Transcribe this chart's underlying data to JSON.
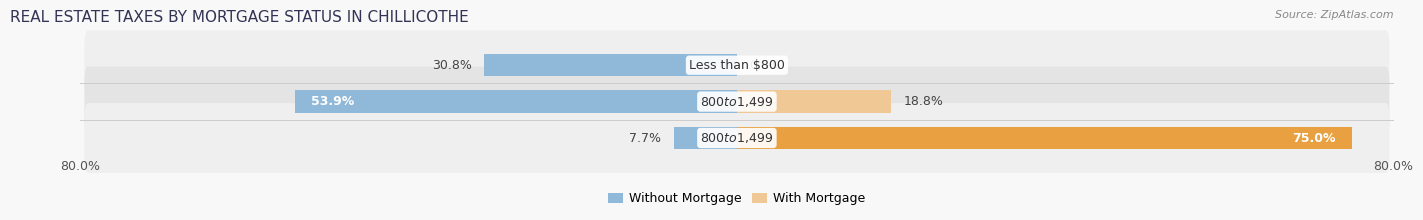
{
  "title": "REAL ESTATE TAXES BY MORTGAGE STATUS IN CHILLICOTHE",
  "source": "Source: ZipAtlas.com",
  "rows": [
    {
      "label": "Less than $800",
      "without_mortgage_pct": 30.8,
      "with_mortgage_pct": 0.0
    },
    {
      "label": "$800 to $1,499",
      "without_mortgage_pct": 53.9,
      "with_mortgage_pct": 18.8
    },
    {
      "label": "$800 to $1,499",
      "without_mortgage_pct": 7.7,
      "with_mortgage_pct": 75.0
    }
  ],
  "xlim_left": -80,
  "xlim_right": 80,
  "color_without": "#90b8d8",
  "color_with_light": "#f0c896",
  "color_with_dark": "#e8a040",
  "bar_height": 0.62,
  "bg_color_odd": "#efefef",
  "bg_color_even": "#e4e4e4",
  "bg_outer": "#f8f8f8",
  "label_fontsize": 9,
  "pct_fontsize": 9,
  "title_fontsize": 11,
  "source_fontsize": 8,
  "legend_label_without": "Without Mortgage",
  "legend_label_with": "With Mortgage",
  "xtick_left_label": "80.0%",
  "xtick_right_label": "80.0%",
  "row3_color_with": "#e8a040"
}
